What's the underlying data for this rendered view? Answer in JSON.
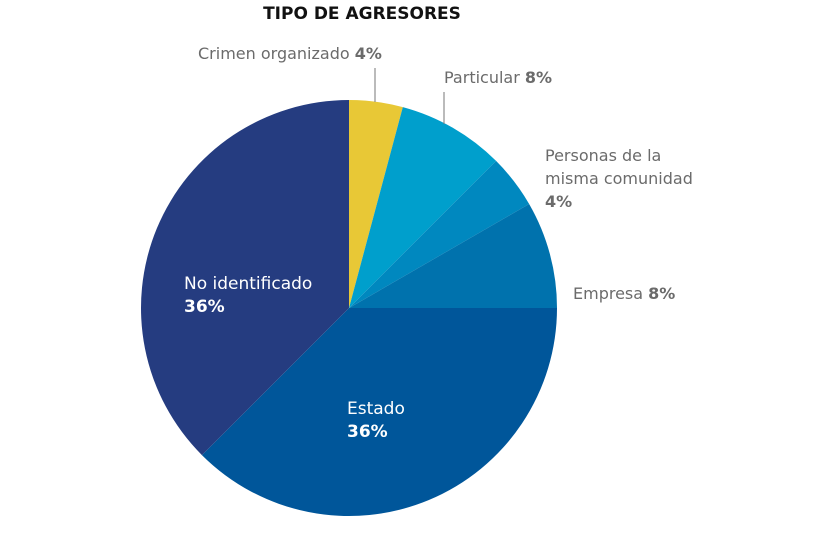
{
  "chart_data": {
    "type": "pie",
    "title": "TIPO DE AGRESORES",
    "slices": [
      {
        "label": "Crimen organizado",
        "value": 4,
        "value_label": "4%",
        "color": "#E8C836"
      },
      {
        "label": "Particular",
        "value": 8,
        "value_label": "8%",
        "color": "#009FCC"
      },
      {
        "label": "Personas de la misma comunidad",
        "label_lines": [
          "Personas de la",
          "misma comunidad"
        ],
        "value": 4,
        "value_label": "4%",
        "color": "#0088BF"
      },
      {
        "label": "Empresa",
        "value": 8,
        "value_label": "8%",
        "color": "#0072AD"
      },
      {
        "label": "Estado",
        "value": 36,
        "value_label": "36%",
        "color": "#00569A"
      },
      {
        "label": "No identificado",
        "value": 36,
        "value_label": "36%",
        "color": "#253C80"
      }
    ],
    "start_angle": "top",
    "direction": "clockwise"
  }
}
